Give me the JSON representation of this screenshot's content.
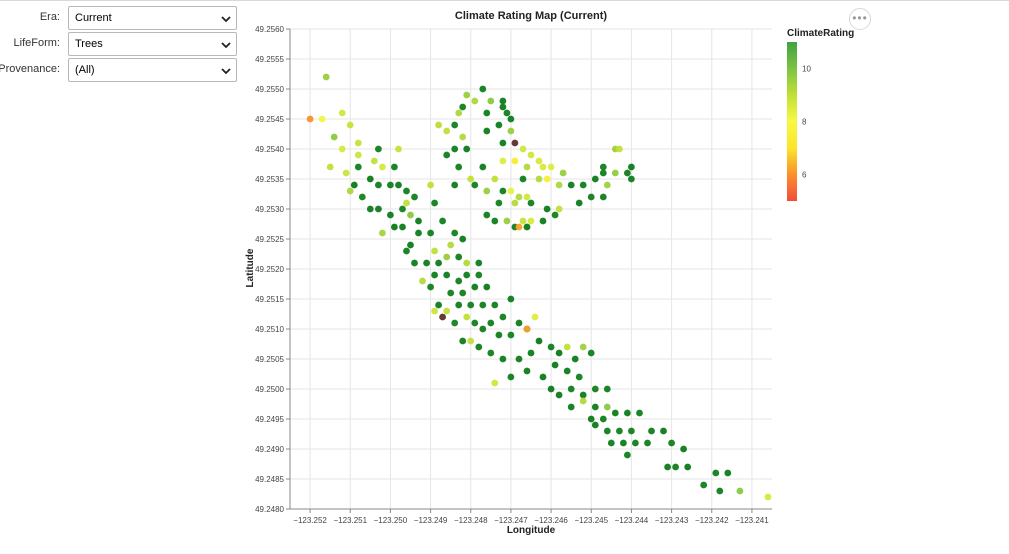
{
  "filters": {
    "era": {
      "label": "Era:",
      "value": "Current"
    },
    "lifeform": {
      "label": "LifeForm:",
      "value": "Trees"
    },
    "provenance": {
      "label": "Provenance:",
      "value": "(All)"
    }
  },
  "icons": {
    "dropdown": "chevron-down-icon",
    "more": "more-options-icon"
  },
  "chart_data": {
    "type": "scatter",
    "title": "Climate Rating Map (Current)",
    "xlabel": "Longitude",
    "ylabel": "Latitude",
    "xlim": [
      -123.2525,
      -123.2405
    ],
    "ylim": [
      49.248,
      49.256
    ],
    "xticks": [
      "−123.252",
      "−123.251",
      "−123.250",
      "−123.249",
      "−123.248",
      "−123.247",
      "−123.246",
      "−123.245",
      "−123.244",
      "−123.243",
      "−123.242",
      "−123.241"
    ],
    "yticks": [
      "49.2480",
      "49.2485",
      "49.2490",
      "49.2495",
      "49.2500",
      "49.2505",
      "49.2510",
      "49.2515",
      "49.2520",
      "49.2525",
      "49.2530",
      "49.2535",
      "49.2540",
      "49.2545",
      "49.2550",
      "49.2555",
      "49.2560"
    ],
    "grid": true,
    "legend": {
      "title": "ClimateRating",
      "position": "right",
      "ticks": [
        "10",
        "8",
        "6"
      ],
      "range": [
        5,
        11
      ],
      "colors": [
        "#f14d3c",
        "#fb8f2b",
        "#fbe52a",
        "#f7f943",
        "#c1df38",
        "#7cc341",
        "#43a142"
      ]
    },
    "points": [
      [
        -123.2516,
        49.2552,
        9.6
      ],
      [
        -123.252,
        49.2545,
        6.0
      ],
      [
        -123.2517,
        49.2545,
        8.1
      ],
      [
        -123.2512,
        49.2546,
        8.7
      ],
      [
        -123.251,
        49.2544,
        8.9
      ],
      [
        -123.2514,
        49.2542,
        9.8
      ],
      [
        -123.2508,
        49.2541,
        8.9
      ],
      [
        -123.2512,
        49.254,
        8.6
      ],
      [
        -123.2508,
        49.2539,
        8.8
      ],
      [
        -123.2503,
        49.254,
        10.3
      ],
      [
        -123.2498,
        49.254,
        8.9
      ],
      [
        -123.2515,
        49.2537,
        9.0
      ],
      [
        -123.2508,
        49.2537,
        10.3
      ],
      [
        -123.2504,
        49.2538,
        9.0
      ],
      [
        -123.2502,
        49.2537,
        8.6
      ],
      [
        -123.2499,
        49.2537,
        10.4
      ],
      [
        -123.2511,
        49.2536,
        8.8
      ],
      [
        -123.2505,
        49.2535,
        10.6
      ],
      [
        -123.2509,
        49.2534,
        10.6
      ],
      [
        -123.2503,
        49.2534,
        10.4
      ],
      [
        -123.25,
        49.2534,
        10.4
      ],
      [
        -123.2498,
        49.2534,
        10.5
      ],
      [
        -123.2496,
        49.2533,
        10.4
      ],
      [
        -123.249,
        49.2534,
        9.0
      ],
      [
        -123.251,
        49.2533,
        9.3
      ],
      [
        -123.2507,
        49.2532,
        10.2
      ],
      [
        -123.2494,
        49.2532,
        10.3
      ],
      [
        -123.2496,
        49.2531,
        9.0
      ],
      [
        -123.2489,
        49.2531,
        10.4
      ],
      [
        -123.2505,
        49.253,
        10.4
      ],
      [
        -123.2503,
        49.253,
        10.5
      ],
      [
        -123.2497,
        49.253,
        10.2
      ],
      [
        -123.25,
        49.2529,
        10.5
      ],
      [
        -123.2495,
        49.2529,
        9.8
      ],
      [
        -123.2493,
        49.2528,
        10.5
      ],
      [
        -123.2487,
        49.2528,
        10.4
      ],
      [
        -123.2499,
        49.2527,
        10.6
      ],
      [
        -123.2502,
        49.2526,
        9.4
      ],
      [
        -123.2497,
        49.2527,
        10.5
      ],
      [
        -123.2493,
        49.2526,
        10.5
      ],
      [
        -123.249,
        49.2526,
        10.3
      ],
      [
        -123.2484,
        49.2526,
        10.3
      ],
      [
        -123.2495,
        49.2524,
        10.5
      ],
      [
        -123.2489,
        49.2523,
        9.0
      ],
      [
        -123.2485,
        49.2524,
        9.2
      ],
      [
        -123.2482,
        49.2525,
        10.6
      ],
      [
        -123.2496,
        49.2523,
        10.4
      ],
      [
        -123.2491,
        49.2521,
        10.5
      ],
      [
        -123.2488,
        49.2521,
        10.5
      ],
      [
        -123.2486,
        49.2522,
        9.6
      ],
      [
        -123.2483,
        49.2522,
        10.4
      ],
      [
        -123.2481,
        49.2521,
        9.2
      ],
      [
        -123.2478,
        49.2521,
        10.5
      ],
      [
        -123.2494,
        49.2521,
        10.5
      ],
      [
        -123.2489,
        49.2519,
        10.4
      ],
      [
        -123.2486,
        49.2519,
        10.5
      ],
      [
        -123.2483,
        49.2518,
        10.3
      ],
      [
        -123.2481,
        49.2519,
        10.4
      ],
      [
        -123.2478,
        49.2519,
        10.3
      ],
      [
        -123.249,
        49.2517,
        10.3
      ],
      [
        -123.2485,
        49.2516,
        10.3
      ],
      [
        -123.2482,
        49.2516,
        10.4
      ],
      [
        -123.2479,
        49.2517,
        10.5
      ],
      [
        -123.2476,
        49.2517,
        10.6
      ],
      [
        -123.2492,
        49.2518,
        9.2
      ],
      [
        -123.2488,
        49.2514,
        10.5
      ],
      [
        -123.2486,
        49.2513,
        9.0
      ],
      [
        -123.2483,
        49.2514,
        10.4
      ],
      [
        -123.248,
        49.2514,
        10.3
      ],
      [
        -123.2477,
        49.2514,
        10.4
      ],
      [
        -123.2474,
        49.2514,
        10.3
      ],
      [
        -123.247,
        49.2515,
        10.5
      ],
      [
        -123.2472,
        49.2512,
        10.3
      ],
      [
        -123.2475,
        49.2511,
        10.4
      ],
      [
        -123.2479,
        49.2511,
        10.3
      ],
      [
        -123.2481,
        49.2512,
        9.0
      ],
      [
        -123.2484,
        49.2511,
        10.2
      ],
      [
        -123.2487,
        49.2512,
        5.0
      ],
      [
        -123.2489,
        49.2513,
        8.8
      ],
      [
        -123.2468,
        49.2511,
        10.5
      ],
      [
        -123.2466,
        49.251,
        10.4
      ],
      [
        -123.2464,
        49.2512,
        8.5
      ],
      [
        -123.2466,
        49.251,
        6.2
      ],
      [
        -123.247,
        49.2509,
        10.3
      ],
      [
        -123.2473,
        49.2509,
        10.4
      ],
      [
        -123.2477,
        49.251,
        10.4
      ],
      [
        -123.2482,
        49.2508,
        10.5
      ],
      [
        -123.248,
        49.2508,
        9.0
      ],
      [
        -123.2478,
        49.2507,
        10.4
      ],
      [
        -123.2475,
        49.2506,
        10.3
      ],
      [
        -123.2472,
        49.2505,
        10.4
      ],
      [
        -123.2468,
        49.2505,
        10.4
      ],
      [
        -123.2465,
        49.2506,
        10.5
      ],
      [
        -123.2463,
        49.2508,
        10.6
      ],
      [
        -123.246,
        49.2507,
        10.4
      ],
      [
        -123.2458,
        49.2506,
        10.6
      ],
      [
        -123.2456,
        49.2507,
        9.0
      ],
      [
        -123.2454,
        49.2505,
        10.5
      ],
      [
        -123.2452,
        49.2507,
        9.5
      ],
      [
        -123.245,
        49.2506,
        10.4
      ],
      [
        -123.2459,
        49.2504,
        10.6
      ],
      [
        -123.2466,
        49.2503,
        10.5
      ],
      [
        -123.247,
        49.2502,
        10.4
      ],
      [
        -123.2474,
        49.2501,
        8.7
      ],
      [
        -123.2462,
        49.2502,
        10.6
      ],
      [
        -123.2456,
        49.2503,
        10.5
      ],
      [
        -123.2453,
        49.2502,
        10.3
      ],
      [
        -123.246,
        49.25,
        10.6
      ],
      [
        -123.2458,
        49.2499,
        10.5
      ],
      [
        -123.2455,
        49.25,
        10.3
      ],
      [
        -123.2452,
        49.2499,
        10.5
      ],
      [
        -123.2449,
        49.25,
        10.3
      ],
      [
        -123.2446,
        49.25,
        10.4
      ],
      [
        -123.2446,
        49.2497,
        9.8
      ],
      [
        -123.2449,
        49.2497,
        10.4
      ],
      [
        -123.2452,
        49.2498,
        9.2
      ],
      [
        -123.2455,
        49.2497,
        10.5
      ],
      [
        -123.245,
        49.2495,
        10.5
      ],
      [
        -123.2447,
        49.2495,
        10.4
      ],
      [
        -123.2444,
        49.2496,
        10.5
      ],
      [
        -123.2441,
        49.2496,
        10.5
      ],
      [
        -123.2438,
        49.2496,
        10.4
      ],
      [
        -123.244,
        49.2493,
        10.3
      ],
      [
        -123.2443,
        49.2493,
        10.3
      ],
      [
        -123.2446,
        49.2493,
        10.4
      ],
      [
        -123.2449,
        49.2494,
        10.5
      ],
      [
        -123.2435,
        49.2493,
        10.4
      ],
      [
        -123.2432,
        49.2493,
        10.6
      ],
      [
        -123.2436,
        49.2491,
        10.4
      ],
      [
        -123.2439,
        49.2491,
        10.4
      ],
      [
        -123.2442,
        49.2491,
        10.5
      ],
      [
        -123.2445,
        49.2491,
        10.4
      ],
      [
        -123.2427,
        49.249,
        10.5
      ],
      [
        -123.243,
        49.2491,
        10.3
      ],
      [
        -123.2441,
        49.2489,
        10.4
      ],
      [
        -123.2431,
        49.2487,
        10.5
      ],
      [
        -123.2429,
        49.2487,
        10.4
      ],
      [
        -123.2426,
        49.2487,
        10.6
      ],
      [
        -123.2419,
        49.2486,
        10.4
      ],
      [
        -123.2416,
        49.2486,
        10.5
      ],
      [
        -123.2422,
        49.2484,
        10.3
      ],
      [
        -123.2418,
        49.2483,
        10.4
      ],
      [
        -123.2413,
        49.2483,
        9.8
      ],
      [
        -123.2406,
        49.2482,
        8.6
      ],
      [
        -123.2481,
        49.2549,
        9.6
      ],
      [
        -123.2479,
        49.2548,
        9.3
      ],
      [
        -123.2482,
        49.2547,
        10.3
      ],
      [
        -123.2477,
        49.255,
        10.4
      ],
      [
        -123.2475,
        49.2548,
        9.8
      ],
      [
        -123.2472,
        49.2548,
        10.5
      ],
      [
        -123.2472,
        49.2547,
        10.5
      ],
      [
        -123.2471,
        49.2546,
        10.4
      ],
      [
        -123.2476,
        49.2546,
        10.4
      ],
      [
        -123.2483,
        49.2546,
        9.3
      ],
      [
        -123.2488,
        49.2544,
        9.1
      ],
      [
        -123.2484,
        49.2544,
        10.3
      ],
      [
        -123.2486,
        49.2543,
        9.0
      ],
      [
        -123.2482,
        49.2542,
        9.2
      ],
      [
        -123.2476,
        49.2543,
        10.5
      ],
      [
        -123.2473,
        49.2544,
        10.5
      ],
      [
        -123.247,
        49.2545,
        10.5
      ],
      [
        -123.247,
        49.2543,
        9.6
      ],
      [
        -123.2472,
        49.2541,
        10.5
      ],
      [
        -123.2469,
        49.2541,
        5.0
      ],
      [
        -123.2467,
        49.254,
        8.7
      ],
      [
        -123.2465,
        49.2539,
        8.7
      ],
      [
        -123.2463,
        49.2538,
        8.6
      ],
      [
        -123.2484,
        49.254,
        10.4
      ],
      [
        -123.2481,
        49.254,
        10.6
      ],
      [
        -123.2486,
        49.2539,
        10.4
      ],
      [
        -123.2472,
        49.2538,
        8.5
      ],
      [
        -123.2469,
        49.2538,
        7.3
      ],
      [
        -123.2466,
        49.2537,
        9.2
      ],
      [
        -123.2462,
        49.2537,
        8.6
      ],
      [
        -123.246,
        49.2537,
        8.5
      ],
      [
        -123.2457,
        49.2536,
        9.6
      ],
      [
        -123.2477,
        49.2537,
        10.5
      ],
      [
        -123.2483,
        49.2537,
        10.4
      ],
      [
        -123.248,
        49.2535,
        9.0
      ],
      [
        -123.2474,
        49.2535,
        9.0
      ],
      [
        -123.2467,
        49.2535,
        10.4
      ],
      [
        -123.2463,
        49.2535,
        9.2
      ],
      [
        -123.2461,
        49.2535,
        7.5
      ],
      [
        -123.2458,
        49.2534,
        9.3
      ],
      [
        -123.2455,
        49.2534,
        10.5
      ],
      [
        -123.2484,
        49.2534,
        10.5
      ],
      [
        -123.2479,
        49.2534,
        10.3
      ],
      [
        -123.2476,
        49.2533,
        9.6
      ],
      [
        -123.2472,
        49.2533,
        10.4
      ],
      [
        -123.247,
        49.2533,
        8.3
      ],
      [
        -123.2468,
        49.2532,
        9.2
      ],
      [
        -123.2466,
        49.2532,
        8.7
      ],
      [
        -123.2473,
        49.2531,
        10.3
      ],
      [
        -123.2469,
        49.2531,
        9.2
      ],
      [
        -123.2465,
        49.2531,
        10.4
      ],
      [
        -123.2461,
        49.253,
        10.5
      ],
      [
        -123.2458,
        49.253,
        9.0
      ],
      [
        -123.2476,
        49.2529,
        10.4
      ],
      [
        -123.2474,
        49.2528,
        10.4
      ],
      [
        -123.2471,
        49.2528,
        9.6
      ],
      [
        -123.2469,
        49.2527,
        10.3
      ],
      [
        -123.2467,
        49.2528,
        8.9
      ],
      [
        -123.2465,
        49.2528,
        8.6
      ],
      [
        -123.2462,
        49.2528,
        10.5
      ],
      [
        -123.2459,
        49.2529,
        10.3
      ],
      [
        -123.2468,
        49.2527,
        6.2
      ],
      [
        -123.2466,
        49.2527,
        9.1
      ],
      [
        -123.2466,
        49.2527,
        10.5
      ],
      [
        -123.2444,
        49.254,
        9.5
      ],
      [
        -123.2443,
        49.254,
        9.0
      ],
      [
        -123.2447,
        49.2536,
        10.4
      ],
      [
        -123.2449,
        49.2535,
        10.5
      ],
      [
        -123.2452,
        49.2534,
        10.4
      ],
      [
        -123.2447,
        49.2537,
        10.3
      ],
      [
        -123.2441,
        49.2536,
        10.5
      ],
      [
        -123.244,
        49.2535,
        10.4
      ],
      [
        -123.2446,
        49.2534,
        9.5
      ],
      [
        -123.245,
        49.2532,
        10.3
      ],
      [
        -123.2447,
        49.2532,
        10.4
      ],
      [
        -123.2453,
        49.2531,
        10.5
      ],
      [
        -123.2444,
        49.2536,
        9.7
      ],
      [
        -123.244,
        49.2537,
        10.6
      ]
    ]
  }
}
